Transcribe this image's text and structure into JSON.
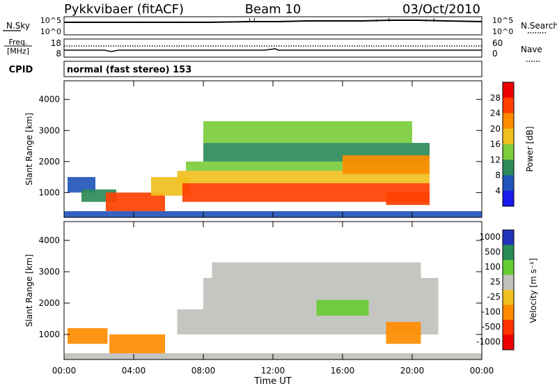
{
  "header": {
    "radar": "Pykkvibaer (fitACF)",
    "beam": "Beam 10",
    "date": "03/Oct/2010"
  },
  "panels": {
    "nsky": {
      "left_label": "N.Sky",
      "left_top": "10^5",
      "left_bottom": "10^0",
      "right_top": "10^5",
      "right_bottom": "10^0",
      "right_label": "N.Search"
    },
    "freq": {
      "left_label_1": "Freq.",
      "left_label_2": "[MHz]",
      "left_top": "18",
      "left_bottom": "8",
      "right_top": "60",
      "right_bottom": "0",
      "right_label": "Nave"
    },
    "cpid": {
      "label": "CPID",
      "text": "normal (fast stereo) 153"
    }
  },
  "chart_data": [
    {
      "type": "heatmap",
      "title": "",
      "ylabel": "Slant Range [km]",
      "xlabel": "Time UT",
      "x_ticks": [
        "00:00",
        "04:00",
        "08:00",
        "12:00",
        "16:00",
        "20:00",
        "00:00"
      ],
      "y_ticks": [
        "1000",
        "2000",
        "3000",
        "4000"
      ],
      "ylim": [
        200,
        4600
      ],
      "colorbar": {
        "label": "Power [dB]",
        "ticks": [
          "4",
          "8",
          "12",
          "16",
          "20",
          "24",
          "28"
        ],
        "colors": [
          "#1a1aee",
          "#2255bb",
          "#2e8b57",
          "#7ccd3c",
          "#f0c020",
          "#ff8c00",
          "#ff4000",
          "#ee0000"
        ]
      },
      "bands": [
        {
          "t0": 0.0,
          "t1": 24.0,
          "r0": 200,
          "r1": 400,
          "value": 6
        },
        {
          "t0": 0.2,
          "t1": 1.8,
          "r0": 1000,
          "r1": 1500,
          "value": 8
        },
        {
          "t0": 1.0,
          "t1": 3.0,
          "r0": 700,
          "r1": 1100,
          "value": 10
        },
        {
          "t0": 2.4,
          "t1": 5.8,
          "r0": 400,
          "r1": 1000,
          "value": 26
        },
        {
          "t0": 5.0,
          "t1": 7.2,
          "r0": 900,
          "r1": 1500,
          "value": 20
        },
        {
          "t0": 6.8,
          "t1": 21.0,
          "r0": 700,
          "r1": 1300,
          "value": 28
        },
        {
          "t0": 6.5,
          "t1": 21.0,
          "r0": 1300,
          "r1": 1700,
          "value": 20
        },
        {
          "t0": 7.0,
          "t1": 21.0,
          "r0": 1700,
          "r1": 2000,
          "value": 14
        },
        {
          "t0": 8.0,
          "t1": 21.0,
          "r0": 2000,
          "r1": 2600,
          "value": 10
        },
        {
          "t0": 8.0,
          "t1": 20.0,
          "r0": 2600,
          "r1": 3300,
          "value": 14
        },
        {
          "t0": 16.0,
          "t1": 21.0,
          "r0": 1600,
          "r1": 2200,
          "value": 24
        },
        {
          "t0": 18.5,
          "t1": 21.0,
          "r0": 600,
          "r1": 1000,
          "value": 28
        }
      ]
    },
    {
      "type": "heatmap",
      "title": "",
      "ylabel": "Slant Range [km]",
      "xlabel": "Time UT",
      "x_ticks": [
        "00:00",
        "04:00",
        "08:00",
        "12:00",
        "16:00",
        "20:00",
        "00:00"
      ],
      "y_ticks": [
        "1000",
        "2000",
        "3000",
        "4000"
      ],
      "ylim": [
        200,
        4600
      ],
      "colorbar": {
        "label": "Velocity [m s⁻¹]",
        "ticks": [
          "1000",
          "500",
          "100",
          "25",
          "-25",
          "-100",
          "-500",
          "-1000"
        ],
        "colors": [
          "#2233bb",
          "#2a8b57",
          "#66cc33",
          "#c0c0bc",
          "#f0c020",
          "#ff8c00",
          "#ff3300",
          "#ee0000"
        ]
      },
      "bands": [
        {
          "t0": 0.0,
          "t1": 24.0,
          "r0": 200,
          "r1": 400,
          "value": 25
        },
        {
          "t0": 0.2,
          "t1": 2.5,
          "r0": 700,
          "r1": 1200,
          "value": -100
        },
        {
          "t0": 2.6,
          "t1": 5.8,
          "r0": 400,
          "r1": 1000,
          "value": -100
        },
        {
          "t0": 6.5,
          "t1": 21.5,
          "r0": 1000,
          "r1": 1800,
          "value": 25
        },
        {
          "t0": 8.0,
          "t1": 21.5,
          "r0": 1800,
          "r1": 2800,
          "value": 25
        },
        {
          "t0": 8.5,
          "t1": 20.5,
          "r0": 2800,
          "r1": 3300,
          "value": 25
        },
        {
          "t0": 14.5,
          "t1": 17.5,
          "r0": 1600,
          "r1": 2100,
          "value": 100
        },
        {
          "t0": 18.5,
          "t1": 20.5,
          "r0": 700,
          "r1": 1400,
          "value": -100
        }
      ]
    }
  ]
}
